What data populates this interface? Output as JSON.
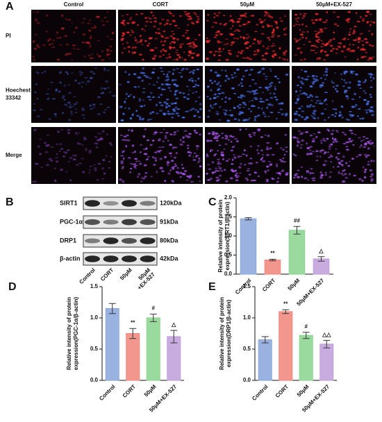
{
  "panel_a": {
    "label": "A",
    "columns": [
      "Control",
      "CORT",
      "50μM",
      "50μM+EX-527"
    ],
    "rows": [
      [
        "PI"
      ],
      [
        "Hoechest",
        "33342"
      ],
      [
        "Merge"
      ]
    ]
  },
  "panel_b": {
    "label": "B",
    "proteins": [
      "SIRT1",
      "PGC-1α",
      "DRP1",
      "β-actin"
    ],
    "sizes": [
      "120kDa",
      "91kDa",
      "80kDa",
      "42kDa"
    ],
    "lanes": [
      [
        "Control"
      ],
      [
        "CORT"
      ],
      [
        "50μM"
      ],
      [
        "50μM",
        "+EX-527"
      ]
    ]
  },
  "chart_data": [
    {
      "type": "bar",
      "panel": "C",
      "ylabel": [
        "Relative intensity of protein",
        "expression(SIRT1/β-actin)"
      ],
      "categories": [
        "Control",
        "CORT",
        "50μM",
        "50μM+EX-527"
      ],
      "values": [
        1.45,
        0.37,
        1.15,
        0.4
      ],
      "errors": [
        0.03,
        0.02,
        0.1,
        0.06
      ],
      "annotations": [
        null,
        "**",
        "##",
        "△"
      ],
      "colors": [
        "#8eaadb",
        "#f28b82",
        "#8fd694",
        "#c3a3dc"
      ],
      "ylim": [
        0,
        2.0
      ],
      "yticks": [
        {
          "value": 0,
          "label": "0.0"
        },
        0.5,
        {
          "value": 1.0,
          "label": "1.0"
        },
        1.5,
        {
          "value": 2.0,
          "label": "2.0"
        }
      ]
    },
    {
      "type": "bar",
      "panel": "D",
      "ylabel": [
        "Relative intensity of protein",
        "expression(PGC-1α/β-actin)"
      ],
      "categories": [
        "Control",
        "CORT",
        "50μM",
        "50μM+EX-527"
      ],
      "values": [
        1.15,
        0.75,
        1.0,
        0.7
      ],
      "errors": [
        0.08,
        0.08,
        0.06,
        0.1
      ],
      "annotations": [
        null,
        "**",
        "#",
        "△"
      ],
      "colors": [
        "#8eaadb",
        "#f28b82",
        "#8fd694",
        "#c3a3dc"
      ],
      "ylim": [
        0,
        1.5
      ],
      "yticks": [
        {
          "value": 0,
          "label": "0.0"
        },
        0.5,
        {
          "value": 1.0,
          "label": "1.0"
        },
        1.5
      ]
    },
    {
      "type": "bar",
      "panel": "E",
      "ylabel": [
        "Relative intensity of protein",
        "expression(DRP1/β-actin)"
      ],
      "categories": [
        "Control",
        "CORT",
        "50μM",
        "50μM+EX-527"
      ],
      "values": [
        0.65,
        1.1,
        0.72,
        0.58
      ],
      "errors": [
        0.05,
        0.03,
        0.05,
        0.06
      ],
      "annotations": [
        null,
        "**",
        "#",
        "△△"
      ],
      "colors": [
        "#8eaadb",
        "#f28b82",
        "#8fd694",
        "#c3a3dc"
      ],
      "ylim": [
        0,
        1.5
      ],
      "yticks": [
        {
          "value": 0,
          "label": "0.0"
        },
        0.5,
        {
          "value": 1.0,
          "label": "1.0"
        },
        1.5
      ]
    }
  ]
}
